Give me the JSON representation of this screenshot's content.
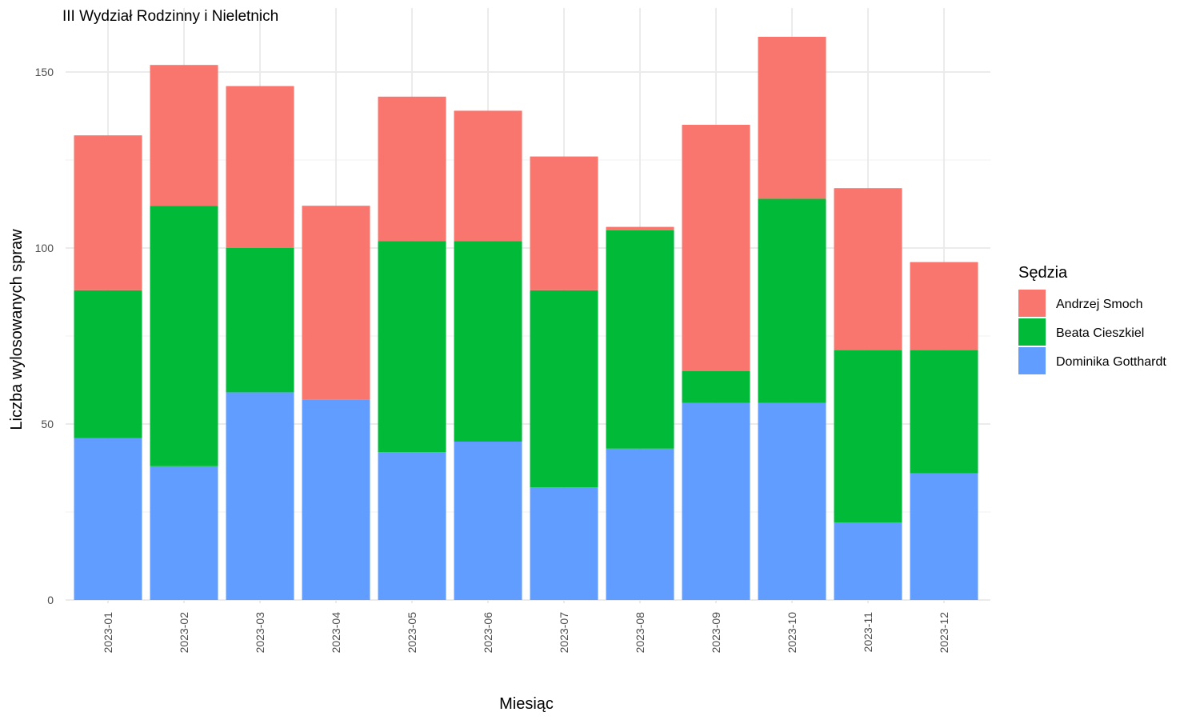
{
  "chart_data": {
    "type": "bar",
    "stacked": true,
    "title": "III Wydział Rodzinny i Nieletnich",
    "xlabel": "Miesiąc",
    "ylabel": "Liczba wylosowanych spraw",
    "ylim": [
      0,
      160
    ],
    "yticks": [
      0,
      50,
      100,
      150
    ],
    "grid": true,
    "legend_title": "Sędzia",
    "legend_position": "right",
    "categories": [
      "2023-01",
      "2023-02",
      "2023-03",
      "2023-04",
      "2023-05",
      "2023-06",
      "2023-07",
      "2023-08",
      "2023-09",
      "2023-10",
      "2023-11",
      "2023-12"
    ],
    "series": [
      {
        "name": "Dominika Gotthardt",
        "color": "#619CFF",
        "values": [
          46,
          38,
          59,
          57,
          42,
          45,
          32,
          43,
          56,
          56,
          22,
          36
        ]
      },
      {
        "name": "Beata Cieszkiel",
        "color": "#00BA38",
        "values": [
          42,
          74,
          41,
          0,
          60,
          57,
          56,
          62,
          9,
          58,
          49,
          35
        ]
      },
      {
        "name": "Andrzej Smoch",
        "color": "#F8766D",
        "values": [
          44,
          40,
          46,
          55,
          41,
          37,
          38,
          1,
          70,
          46,
          46,
          25
        ]
      }
    ],
    "legend_order": [
      "Andrzej Smoch",
      "Beata Cieszkiel",
      "Dominika Gotthardt"
    ]
  }
}
